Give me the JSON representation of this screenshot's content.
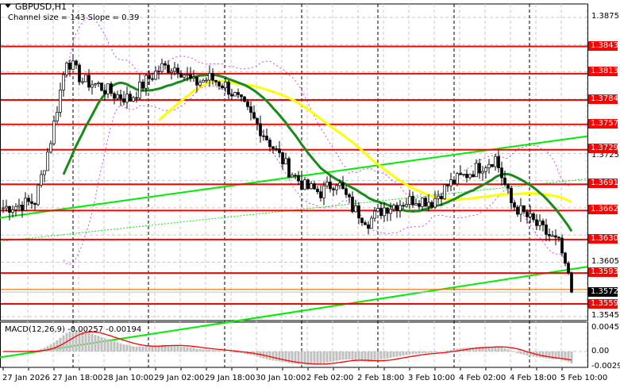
{
  "header": {
    "symbol": "GBPUSD,H1",
    "indicator": "Channel size = 143 Slope = 0.39"
  },
  "macd": {
    "label": "MACD(12,26,9) -0.00257 -0.00194",
    "axis": [
      "0.00457",
      "0.00",
      "-0.00297"
    ]
  },
  "price_axis": [
    "1.3875",
    "1.3725",
    "1.3605",
    "1.3545"
  ],
  "levels": [
    "1.3843",
    "1.3813",
    "1.3784",
    "1.3757",
    "1.3729",
    "1.3691",
    "1.3662",
    "1.3630",
    "1.3593",
    "1.3559"
  ],
  "current_price": "1.3572",
  "time_axis": [
    "27 Jan 2026",
    "27 Jan 18:00",
    "28 Jan 10:00",
    "29 Jan 02:00",
    "29 Jan 18:00",
    "30 Jan 10:00",
    "2 Feb 02:00",
    "2 Feb 18:00",
    "3 Feb 10:00",
    "4 Feb 02:00",
    "4 Feb 18:00",
    "5 Feb 10:00"
  ],
  "colors": {
    "level": "#ff0000",
    "ma_fast": "#1a8a1a",
    "ma_slow": "#ffff00",
    "channel": "#00ee00",
    "bands": "#cc44ff",
    "macd_hist": "#c0c0c0",
    "macd_signal": "#ff0000"
  },
  "chart_data": {
    "type": "candlestick",
    "timeframe": "H1",
    "ylim": [
      1.3545,
      1.3875
    ],
    "closes": [
      1.3665,
      1.3668,
      1.3672,
      1.374,
      1.383,
      1.3805,
      1.38,
      1.379,
      1.3785,
      1.3805,
      1.382,
      1.382,
      1.3802,
      1.3808,
      1.38,
      1.378,
      1.3757,
      1.3732,
      1.3707,
      1.3688,
      1.3682,
      1.3695,
      1.3665,
      1.365,
      1.3665,
      1.367,
      1.3675,
      1.3672,
      1.369,
      1.37,
      1.371,
      1.372,
      1.367,
      1.3655,
      1.364,
      1.3625,
      1.3572
    ],
    "channel": {
      "upper": [
        1.3654,
        1.3744
      ],
      "lower": [
        1.35,
        1.36
      ],
      "middle": [
        1.3628,
        1.3697
      ]
    }
  }
}
